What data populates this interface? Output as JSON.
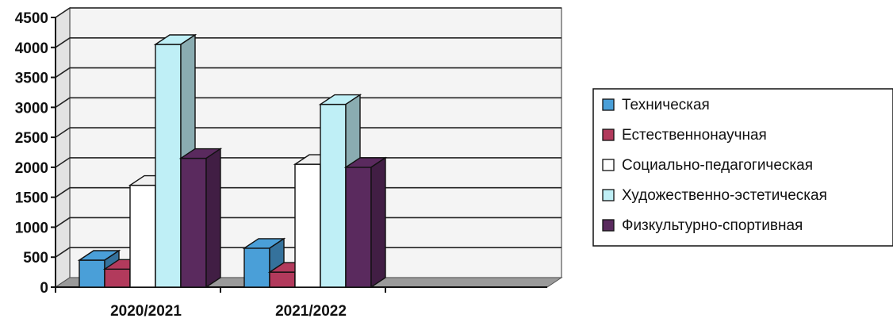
{
  "chart_data": {
    "type": "bar",
    "categories": [
      "2020/2021",
      "2021/2022"
    ],
    "series": [
      {
        "name": "Техническая",
        "values": [
          450,
          650
        ],
        "color": "#4a9fd8"
      },
      {
        "name": "Естественнонаучная",
        "values": [
          300,
          250
        ],
        "color": "#b23a5c"
      },
      {
        "name": "Социально-педагогическая",
        "values": [
          1700,
          2050
        ],
        "color": "#ffffff"
      },
      {
        "name": "Художественно-эстетическая",
        "values": [
          4050,
          3050
        ],
        "color": "#bfeff6"
      },
      {
        "name": "Физкультурно-спортивная",
        "values": [
          2150,
          2000
        ],
        "color": "#5a2a5e"
      }
    ],
    "y_ticks": [
      "0",
      "500",
      "1000",
      "1500",
      "2000",
      "2500",
      "3000",
      "3500",
      "4000",
      "4500"
    ],
    "ylim": [
      0,
      4500
    ],
    "grid": true,
    "legend_position": "right",
    "bar_style": "3d-column"
  }
}
